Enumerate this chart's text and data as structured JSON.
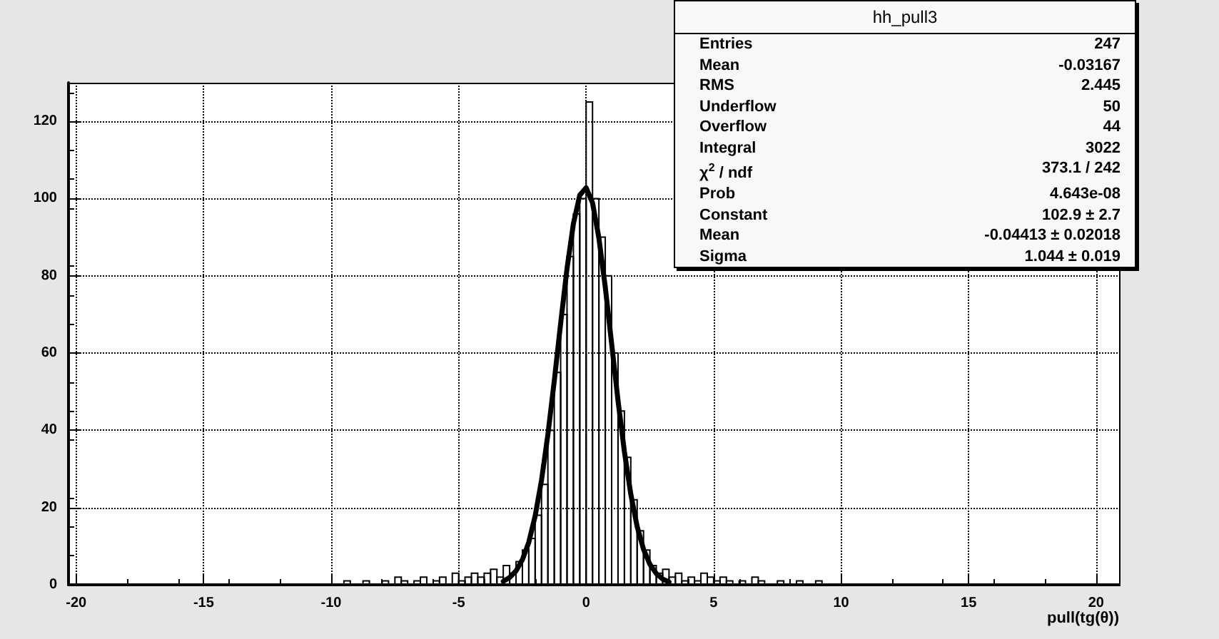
{
  "chart_data": {
    "type": "histogram",
    "title": "hh_pull3",
    "xlabel": "pull(tg(θ))",
    "annotations": [
      "Entries\t247",
      "Mean\t-0.03167",
      "RMS\t2.445",
      "Underflow\t50",
      "Overflow\t44",
      "Integral\t3022",
      "χ$^{2}$ / ndf\t373.1 / 242",
      "Prob\t4.643e-08",
      "Constant\t102.9 ± 2.7",
      "Mean\t-0.04413 ± 0.02018",
      "Sigma\t1.044 ± 0.019"
    ],
    "xlim": [
      -20.3,
      20.9
    ],
    "xticks": [
      -20,
      -15,
      -10,
      -5,
      0,
      5,
      10,
      15,
      20
    ],
    "ylim": [
      0,
      130
    ],
    "yticks": [
      0,
      20,
      40,
      60,
      80,
      100,
      120
    ],
    "grid": true,
    "series": [
      {
        "color": "#000000",
        "bins": [
          -10,
          -9.75,
          -9.5,
          -9.25,
          -9,
          -8.75,
          -8.5,
          -8.25,
          -8,
          -7.75,
          -7.5,
          -7.25,
          -7,
          -6.75,
          -6.5,
          -6.25,
          -6,
          -5.75,
          -5.5,
          -5.25,
          -5,
          -4.75,
          -4.5,
          -4.25,
          -4,
          -3.75,
          -3.5,
          -3.25,
          -3,
          -2.75,
          -2.5,
          -2.25,
          -2,
          -1.75,
          -1.5,
          -1.25,
          -1,
          -0.75,
          -0.5,
          -0.25,
          0,
          0.25,
          0.5,
          0.75,
          1,
          1.25,
          1.5,
          1.75,
          2,
          2.25,
          2.5,
          2.75,
          3,
          3.25,
          3.5,
          3.75,
          4,
          4.25,
          4.5,
          4.75,
          5,
          5.25,
          5.5,
          5.75,
          6,
          6.25,
          6.5,
          6.75,
          7,
          7.25,
          7.5,
          7.75,
          8,
          8.25,
          8.5,
          8.75,
          9,
          9.25,
          9.5,
          9.75,
          10
        ],
        "values": [
          0,
          0,
          1,
          0,
          0,
          1,
          0,
          0,
          1,
          0,
          2,
          1,
          0,
          1,
          2,
          0,
          1,
          2,
          0,
          3,
          1,
          2,
          3,
          2,
          3,
          4,
          2,
          5,
          3,
          6,
          9,
          12,
          18,
          26,
          40,
          55,
          70,
          85,
          96,
          100,
          125,
          100,
          90,
          80,
          60,
          45,
          33,
          22,
          14,
          9,
          5,
          3,
          4,
          2,
          3,
          1,
          2,
          1,
          3,
          2,
          1,
          2,
          1,
          0,
          1,
          0,
          2,
          1,
          0,
          0,
          1,
          0,
          0,
          1,
          0,
          0,
          1,
          0,
          0,
          0
        ]
      },
      {
        "type": "line",
        "color": "#000000",
        "line_style": "solid",
        "marker": "none",
        "x": [
          -3.25,
          -3,
          -2.75,
          -2.5,
          -2.25,
          -2,
          -1.75,
          -1.5,
          -1.25,
          -1,
          -0.75,
          -0.5,
          -0.25,
          0,
          0.25,
          0.5,
          0.75,
          1,
          1.25,
          1.5,
          1.75,
          2,
          2.25,
          2.5,
          2.75,
          3,
          3.25
        ],
        "values": [
          0.9,
          1.9,
          3.6,
          6.5,
          11,
          17.8,
          27.1,
          38.9,
          52.8,
          67.7,
          81.9,
          93.5,
          100.9,
          102.8,
          98.9,
          89.8,
          77.1,
          62.4,
          47.7,
          34.5,
          23.5,
          15.1,
          9.2,
          5.3,
          2.9,
          1.5,
          0.7
        ]
      }
    ]
  }
}
